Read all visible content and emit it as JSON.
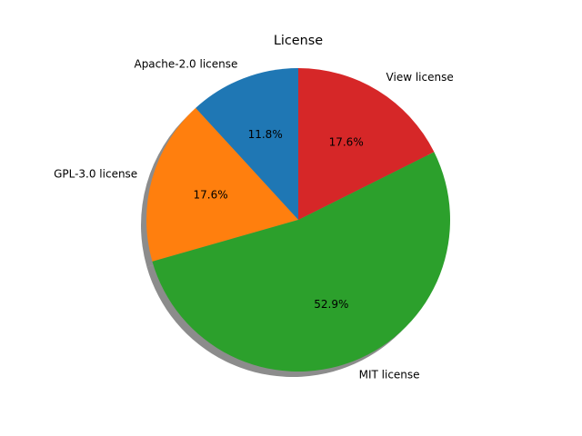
{
  "chart_data": {
    "type": "pie",
    "title": "License",
    "categories": [
      "Apache-2.0 license",
      "GPL-3.0 license",
      "MIT license",
      "View license"
    ],
    "values": [
      11.8,
      17.6,
      52.9,
      17.6
    ],
    "percent_labels": [
      "11.8%",
      "17.6%",
      "52.9%",
      "17.6%"
    ],
    "colors": [
      "#1f77b4",
      "#ff7f0e",
      "#2ca02c",
      "#d62728"
    ],
    "start_angle_deg": 90,
    "direction": "counterclockwise",
    "shadow": true,
    "legend": "none"
  }
}
